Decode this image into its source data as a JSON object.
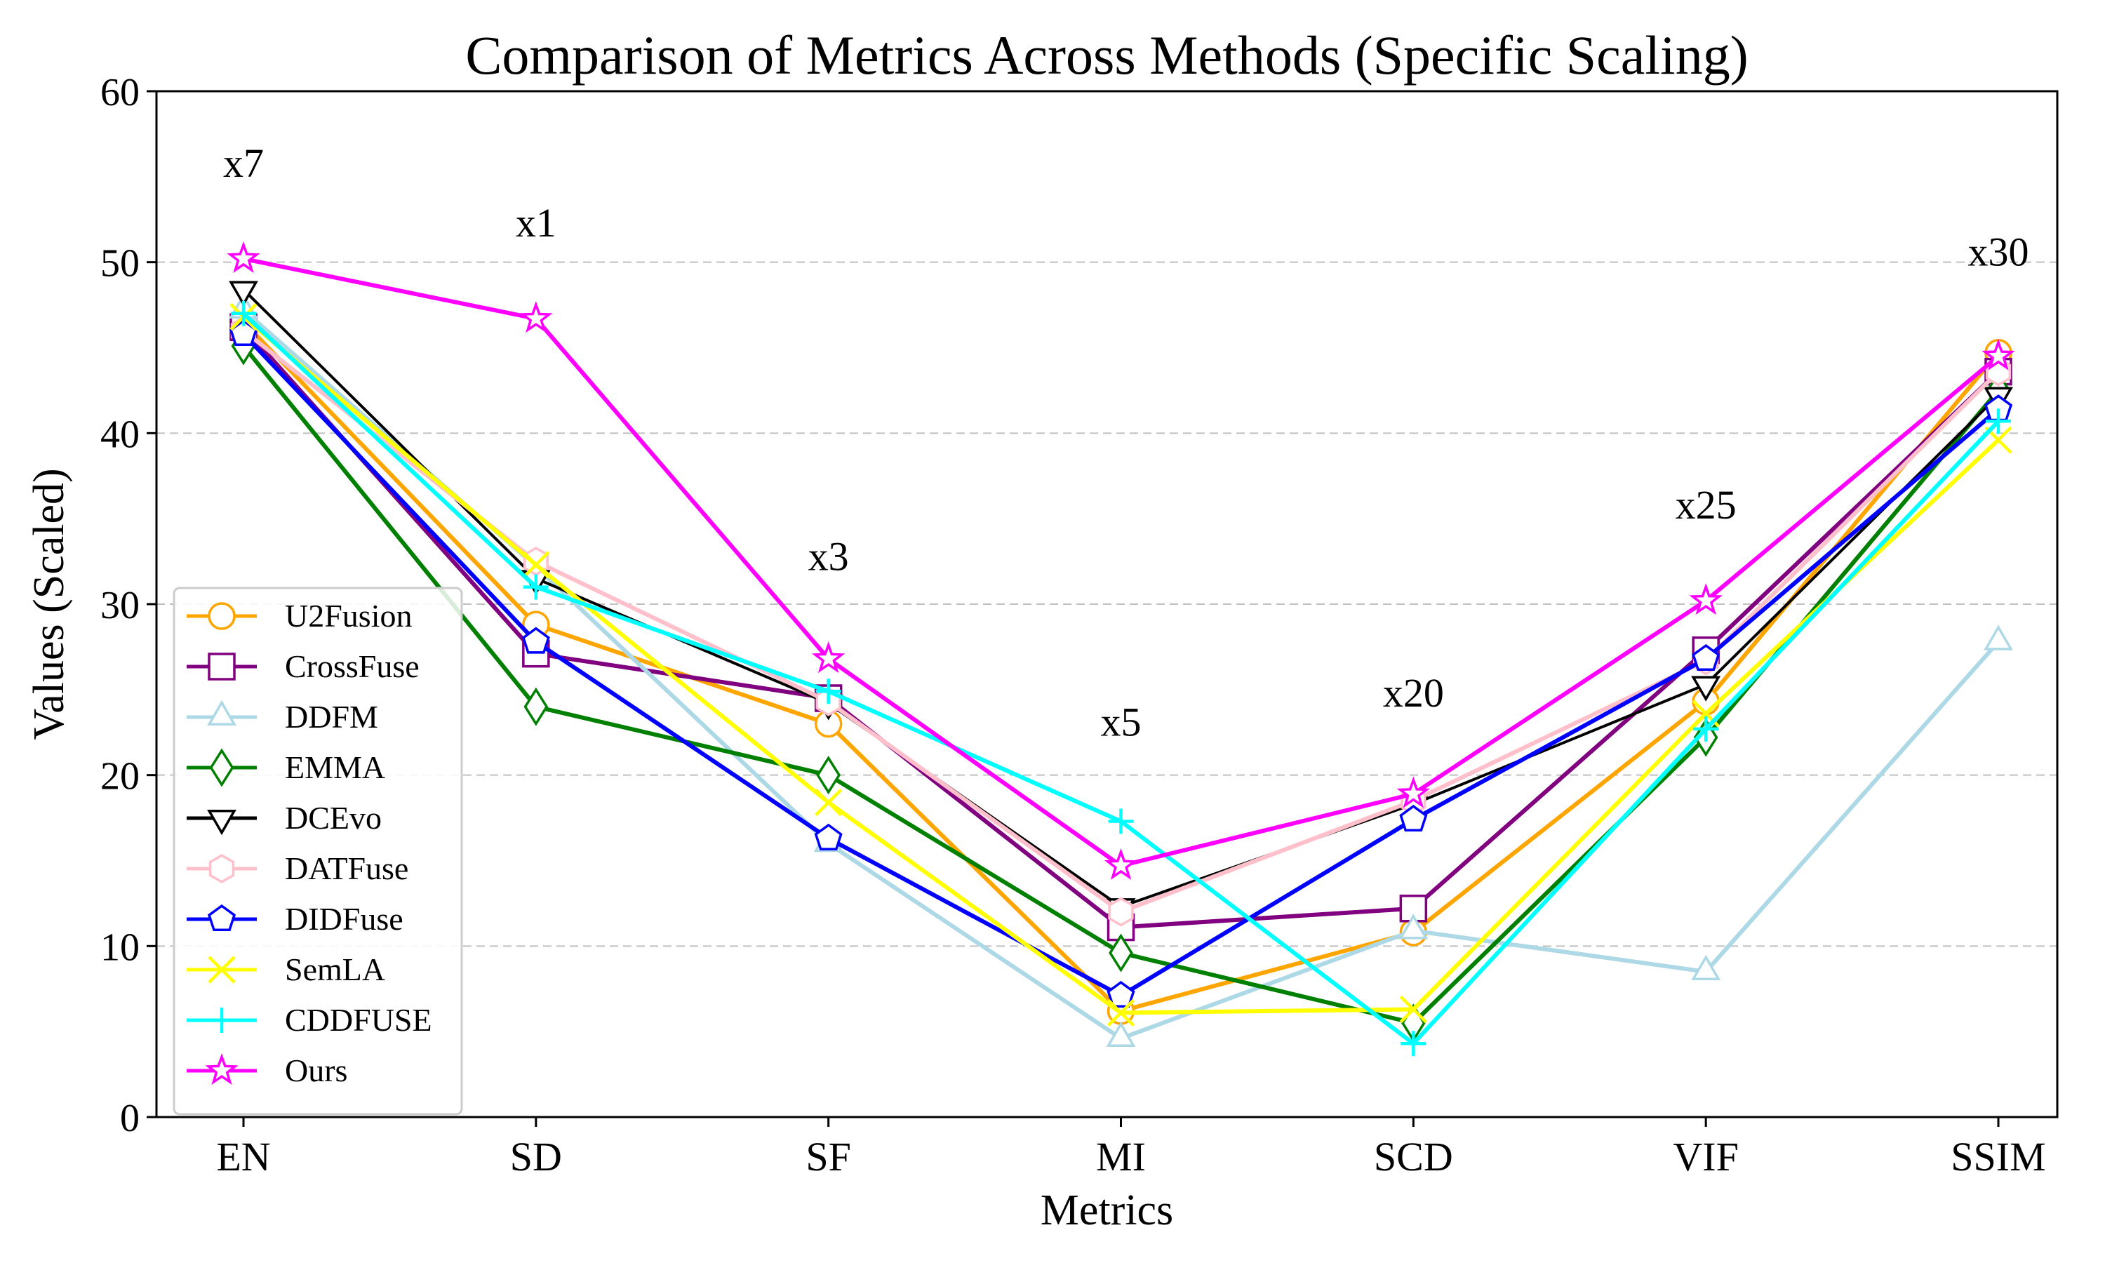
{
  "chart_data": {
    "type": "line",
    "title": "Comparison of Metrics Across Methods (Specific Scaling)",
    "xlabel": "Metrics",
    "ylabel": "Values (Scaled)",
    "categories": [
      "EN",
      "SD",
      "SF",
      "MI",
      "SCD",
      "VIF",
      "SSIM"
    ],
    "ylim": [
      0,
      60
    ],
    "yticks": [
      0,
      10,
      20,
      30,
      40,
      50,
      60
    ],
    "grid": "horizontal-dashed",
    "legend_position": "center-left",
    "annotations": [
      {
        "text": "x7",
        "x": "EN",
        "y": 55
      },
      {
        "text": "x1",
        "x": "SD",
        "y": 51.5
      },
      {
        "text": "x3",
        "x": "SF",
        "y": 32
      },
      {
        "text": "x5",
        "x": "MI",
        "y": 22.3
      },
      {
        "text": "x20",
        "x": "SCD",
        "y": 24
      },
      {
        "text": "x25",
        "x": "VIF",
        "y": 35
      },
      {
        "text": "x30",
        "x": "SSIM",
        "y": 49.8
      }
    ],
    "series": [
      {
        "name": "U2Fusion",
        "color": "#FFA500",
        "marker": "circle",
        "values": [
          46.5,
          28.8,
          23.0,
          6.2,
          10.8,
          24.3,
          44.7
        ]
      },
      {
        "name": "CrossFuse",
        "color": "#800080",
        "marker": "square",
        "values": [
          46.2,
          27.1,
          24.5,
          11.1,
          12.2,
          27.3,
          43.6
        ]
      },
      {
        "name": "DDFM",
        "color": "#ADD8E6",
        "marker": "triangle-up",
        "values": [
          47.2,
          32.2,
          16.0,
          4.6,
          10.9,
          8.5,
          27.8
        ]
      },
      {
        "name": "EMMA",
        "color": "#008000",
        "marker": "diamond",
        "values": [
          45.1,
          24.0,
          20.0,
          9.6,
          5.5,
          22.2,
          42.5
        ]
      },
      {
        "name": "DCEvo",
        "color": "#000000",
        "marker": "triangle-down",
        "values": [
          48.4,
          31.5,
          24.2,
          12.3,
          18.3,
          25.3,
          42.2
        ]
      },
      {
        "name": "DATFuse",
        "color": "#FFC0CB",
        "marker": "hexagon",
        "values": [
          46.0,
          32.5,
          24.3,
          12.0,
          18.5,
          26.7,
          43.6
        ]
      },
      {
        "name": "DIDFuse",
        "color": "#0000FF",
        "marker": "pentagon",
        "values": [
          45.8,
          27.8,
          16.3,
          7.1,
          17.4,
          26.8,
          41.4
        ]
      },
      {
        "name": "SemLA",
        "color": "#FFFF00",
        "marker": "x",
        "values": [
          46.8,
          32.3,
          18.4,
          6.1,
          6.3,
          23.6,
          39.6
        ]
      },
      {
        "name": "CDDFUSE",
        "color": "#00FFFF",
        "marker": "plus",
        "values": [
          47.0,
          31.0,
          24.9,
          17.3,
          4.3,
          22.7,
          40.7
        ]
      },
      {
        "name": "Ours",
        "color": "#FF00FF",
        "marker": "star",
        "values": [
          50.2,
          46.7,
          26.8,
          14.7,
          18.9,
          30.2,
          44.5
        ]
      }
    ]
  }
}
